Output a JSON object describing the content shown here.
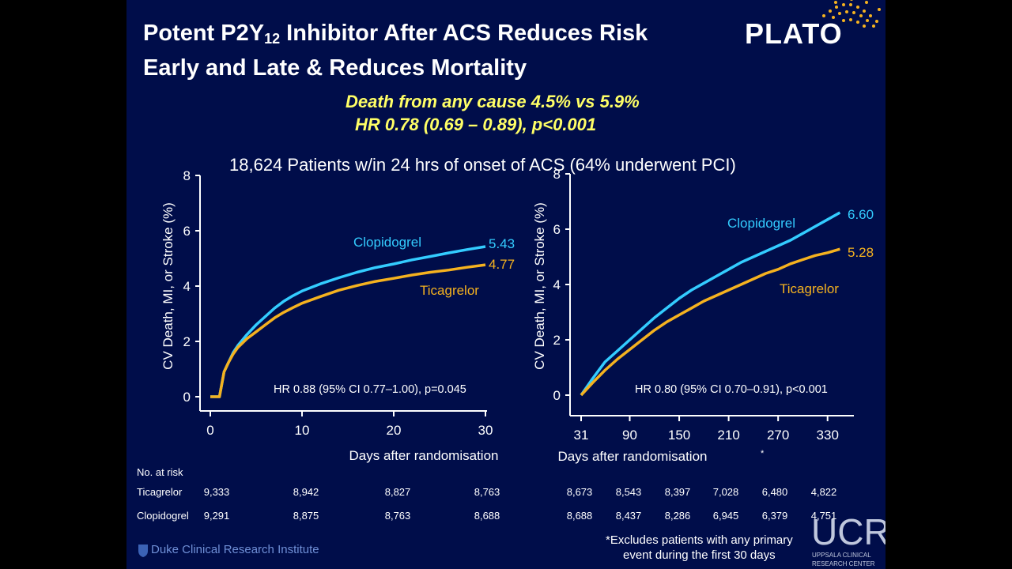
{
  "title_line1_pre": "Potent P2Y",
  "title_sub": "12",
  "title_line1_post": " Inhibitor After ACS Reduces Risk",
  "title_line2": "Early and Late & Reduces Mortality",
  "brand": "PLATO",
  "subtitle_line1": "Death from any cause 4.5% vs 5.9%",
  "subtitle_line2": "HR 0.78 (0.69 – 0.89), p<0.001",
  "population": "18,624 Patients w/in 24 hrs of onset of ACS (64% underwent PCI)",
  "colors": {
    "background": "#000d4a",
    "clopidogrel": "#33ccff",
    "ticagrelor": "#f5b21f",
    "highlight": "#ffff66"
  },
  "chart_data": [
    {
      "type": "line",
      "ylabel": "CV Death, MI, or Stroke (%)",
      "xlabel": "Days after randomisation",
      "xlim": [
        0,
        30
      ],
      "ylim": [
        0,
        8
      ],
      "xticks": [
        0,
        10,
        20,
        30
      ],
      "yticks": [
        0,
        2,
        4,
        6,
        8
      ],
      "annotation": "HR 0.88 (95% CI 0.77–1.00), p=0.045",
      "series": [
        {
          "name": "Clopidogrel",
          "end_label": "5.43",
          "x": [
            0,
            1,
            1.5,
            2,
            2.5,
            3,
            4,
            5,
            6,
            7,
            8,
            9,
            10,
            12,
            14,
            16,
            18,
            20,
            22,
            24,
            26,
            28,
            30
          ],
          "y": [
            0,
            0,
            0.9,
            1.25,
            1.6,
            1.85,
            2.25,
            2.6,
            2.9,
            3.2,
            3.45,
            3.65,
            3.82,
            4.08,
            4.3,
            4.5,
            4.67,
            4.8,
            4.95,
            5.07,
            5.2,
            5.32,
            5.43
          ]
        },
        {
          "name": "Ticagrelor",
          "end_label": "4.77",
          "x": [
            0,
            1,
            1.5,
            2,
            2.5,
            3,
            4,
            5,
            6,
            7,
            8,
            9,
            10,
            12,
            14,
            16,
            18,
            20,
            22,
            24,
            26,
            28,
            30
          ],
          "y": [
            0,
            0,
            0.9,
            1.25,
            1.55,
            1.78,
            2.1,
            2.35,
            2.6,
            2.85,
            3.05,
            3.22,
            3.38,
            3.62,
            3.85,
            4.02,
            4.17,
            4.28,
            4.4,
            4.5,
            4.58,
            4.68,
            4.77
          ]
        }
      ]
    },
    {
      "type": "line",
      "ylabel": "CV Death, MI, or Stroke (%)",
      "xlabel": "Days after randomisation",
      "xlabel_mark": "*",
      "xlim": [
        31,
        360
      ],
      "ylim": [
        0,
        8
      ],
      "xticks": [
        31,
        90,
        150,
        210,
        270,
        330
      ],
      "yticks": [
        0,
        2,
        4,
        6,
        8
      ],
      "annotation": "HR 0.80 (95% CI 0.70–0.91), p<0.001",
      "series": [
        {
          "name": "Clopidogrel",
          "end_label": "6.60",
          "x": [
            31,
            45,
            60,
            75,
            90,
            105,
            120,
            135,
            150,
            165,
            180,
            195,
            210,
            225,
            240,
            255,
            270,
            285,
            300,
            315,
            330,
            345
          ],
          "y": [
            0,
            0.6,
            1.2,
            1.6,
            2.0,
            2.4,
            2.8,
            3.15,
            3.5,
            3.8,
            4.05,
            4.3,
            4.55,
            4.8,
            5.0,
            5.2,
            5.4,
            5.6,
            5.85,
            6.1,
            6.35,
            6.6
          ]
        },
        {
          "name": "Ticagrelor",
          "end_label": "5.28",
          "x": [
            31,
            45,
            60,
            75,
            90,
            105,
            120,
            135,
            150,
            165,
            180,
            195,
            210,
            225,
            240,
            255,
            270,
            285,
            300,
            315,
            330,
            345
          ],
          "y": [
            0,
            0.45,
            0.9,
            1.3,
            1.65,
            2.0,
            2.35,
            2.65,
            2.9,
            3.15,
            3.4,
            3.6,
            3.8,
            4.0,
            4.2,
            4.4,
            4.55,
            4.75,
            4.9,
            5.05,
            5.15,
            5.28
          ]
        }
      ]
    }
  ],
  "risk_table": {
    "heading": "No. at risk",
    "rows": [
      {
        "label": "Ticagrelor",
        "values": [
          "9,333",
          "8,942",
          "8,827",
          "8,763",
          "8,673",
          "8,543",
          "8,397",
          "7,028",
          "6,480",
          "4,822"
        ]
      },
      {
        "label": "Clopidogrel",
        "values": [
          "9,291",
          "8,875",
          "8,763",
          "8,688",
          "8,688",
          "8,437",
          "8,286",
          "6,945",
          "6,379",
          "4,751"
        ]
      }
    ]
  },
  "footnote_line1": "*Excludes patients with any primary",
  "footnote_line2": "event during the first 30 days",
  "logo_duke": "Duke Clinical Research Institute",
  "logo_ucr": "UCR",
  "logo_ucr_sub1": "UPPSALA CLINICAL",
  "logo_ucr_sub2": "RESEARCH CENTER"
}
